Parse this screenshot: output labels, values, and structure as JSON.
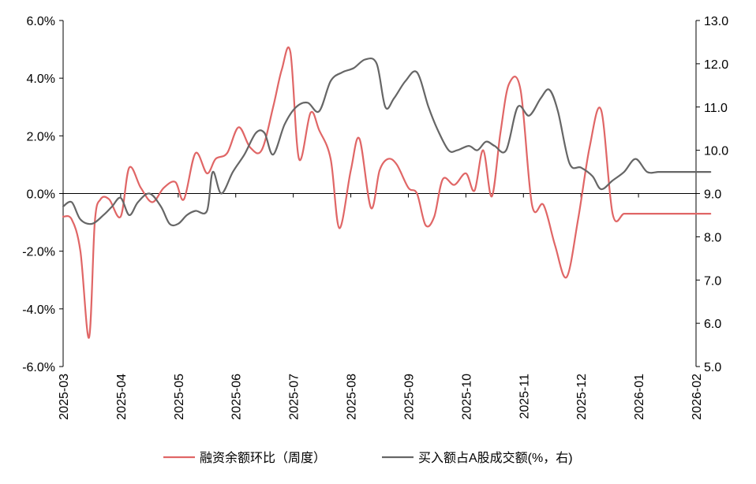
{
  "chart_data": {
    "type": "line",
    "x_labels": [
      "2025-03",
      "2025-04",
      "2025-05",
      "2025-06",
      "2025-07",
      "2025-08",
      "2025-09",
      "2025-10",
      "2025-11",
      "2025-12",
      "2026-01",
      "2026-02"
    ],
    "left_axis": {
      "min": -6.0,
      "max": 6.0,
      "ticks": [
        "6.0%",
        "4.0%",
        "2.0%",
        "0.0%",
        "-2.0%",
        "-4.0%",
        "-6.0%"
      ]
    },
    "right_axis": {
      "min": 5.0,
      "max": 13.0,
      "ticks": [
        "13.0",
        "12.0",
        "11.0",
        "10.0",
        "9.0",
        "8.0",
        "7.0",
        "6.0",
        "5.0"
      ]
    },
    "grid": false,
    "legend_position": "bottom",
    "series": [
      {
        "name": "融资余额环比（周度）",
        "axis": "left",
        "color": "#e06666",
        "x": [
          0,
          0.15,
          0.3,
          0.45,
          0.55,
          0.65,
          0.8,
          1.0,
          1.15,
          1.35,
          1.55,
          1.75,
          1.95,
          2.1,
          2.3,
          2.5,
          2.65,
          2.85,
          3.05,
          3.25,
          3.45,
          3.65,
          3.8,
          3.95,
          4.1,
          4.3,
          4.45,
          4.65,
          4.8,
          5.0,
          5.15,
          5.35,
          5.5,
          5.65,
          5.8,
          6.0,
          6.15,
          6.3,
          6.45,
          6.6,
          6.8,
          7.0,
          7.15,
          7.3,
          7.45,
          7.6,
          7.75,
          7.95,
          8.15,
          8.35,
          8.55,
          8.75,
          8.95,
          9.15,
          9.35,
          9.55,
          9.75,
          9.95,
          10.15,
          10.35,
          10.55,
          10.75,
          10.95,
          11.15,
          11.25
        ],
        "values": [
          -0.8,
          -0.9,
          -2.0,
          -5.0,
          -1.0,
          -0.2,
          -0.2,
          -0.8,
          0.9,
          0.2,
          -0.3,
          0.2,
          0.4,
          -0.2,
          1.4,
          0.7,
          1.2,
          1.4,
          2.3,
          1.6,
          1.5,
          3.0,
          4.3,
          4.9,
          1.2,
          2.8,
          2.2,
          1.2,
          -1.2,
          0.8,
          1.9,
          -0.5,
          0.8,
          1.2,
          1.0,
          0.2,
          0.0,
          -1.1,
          -0.8,
          0.5,
          0.3,
          0.7,
          0.1,
          1.5,
          -0.1,
          2.1,
          3.8,
          3.6,
          -0.4,
          -0.4,
          -1.8,
          -2.9,
          -0.9,
          1.6,
          2.9,
          -0.7,
          -0.7,
          -0.7,
          -0.7,
          -0.7,
          -0.7,
          -0.7,
          -0.7,
          -0.7,
          -0.7
        ]
      },
      {
        "name": "买入额占A股成交额(%，右)",
        "axis": "right",
        "color": "#666666",
        "x": [
          0,
          0.15,
          0.3,
          0.5,
          0.7,
          0.85,
          1.0,
          1.15,
          1.3,
          1.5,
          1.7,
          1.85,
          2.0,
          2.15,
          2.3,
          2.5,
          2.6,
          2.75,
          2.95,
          3.15,
          3.35,
          3.5,
          3.65,
          3.85,
          4.05,
          4.25,
          4.45,
          4.65,
          4.85,
          5.05,
          5.25,
          5.45,
          5.6,
          5.75,
          5.95,
          6.15,
          6.35,
          6.5,
          6.7,
          6.85,
          7.05,
          7.2,
          7.35,
          7.5,
          7.7,
          7.9,
          8.1,
          8.3,
          8.45,
          8.6,
          8.8,
          9.0,
          9.2,
          9.35,
          9.55,
          9.75,
          9.95,
          10.15,
          10.35,
          10.55,
          10.75,
          10.95,
          11.15,
          11.25
        ],
        "values": [
          8.7,
          8.8,
          8.4,
          8.3,
          8.5,
          8.7,
          8.9,
          8.5,
          8.8,
          9.0,
          8.7,
          8.3,
          8.3,
          8.5,
          8.6,
          8.6,
          9.5,
          9.0,
          9.5,
          9.9,
          10.4,
          10.4,
          9.9,
          10.6,
          11.0,
          11.1,
          10.9,
          11.6,
          11.8,
          11.9,
          12.1,
          12.0,
          11.0,
          11.2,
          11.6,
          11.8,
          11.0,
          10.5,
          10.0,
          10.0,
          10.1,
          10.0,
          10.2,
          10.1,
          10.0,
          11.0,
          10.8,
          11.2,
          11.4,
          10.9,
          9.7,
          9.6,
          9.4,
          9.1,
          9.3,
          9.5,
          9.8,
          9.5,
          9.5,
          9.5,
          9.5,
          9.5,
          9.5,
          9.5
        ]
      }
    ]
  }
}
